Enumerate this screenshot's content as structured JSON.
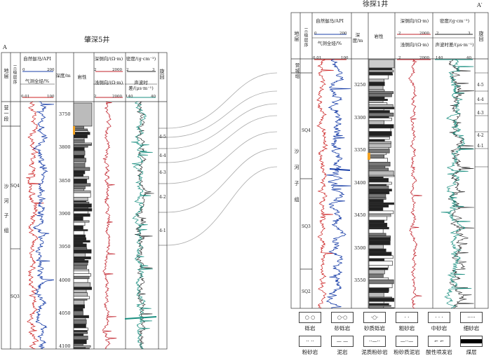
{
  "well_left": {
    "title": "肇深5井",
    "profile_end": "A",
    "col_headers": {
      "formation": "地层",
      "sequence": "三级层序",
      "gamma": "自然伽马/API",
      "gamma_min": "0",
      "gamma_max": "200",
      "gas": "气测全烃/%",
      "gas_min": "0.01",
      "gas_max": "100",
      "depth": "深度/m",
      "lith": "岩性",
      "deep_res": "深侧向/(Ω·m)",
      "deep_min": "2",
      "deep_max": "2000",
      "shallow_res": "浅侧向/(Ω·m)",
      "shallow_min": "2",
      "shallow_max": "2000",
      "density": "密度/(g·cm⁻³)",
      "density_min": "2",
      "density_max": "3",
      "sonic": "声波时差/(μs·m⁻¹)",
      "sonic_min": "140",
      "sonic_max": "40",
      "cycle": "旋回"
    },
    "formations": [
      "营一段",
      "沙河子组"
    ],
    "sequences": [
      "SQ4",
      "SQ3"
    ],
    "depths": [
      "3750",
      "3800",
      "3850",
      "3900",
      "3950",
      "4000",
      "4050",
      "4100"
    ],
    "cycles": [
      "4-5",
      "4-4",
      "4-3",
      "4-2",
      "4-1"
    ]
  },
  "well_right": {
    "title": "徐探1井",
    "profile_end": "A′",
    "col_headers": {
      "formation": "地层",
      "sequence": "三级层序",
      "gamma": "自然伽马/API",
      "gamma_min": "0",
      "gamma_max": "200",
      "gas": "气测全烃/%",
      "gas_min": "0.01",
      "gas_max": "100",
      "depth": "深度/m",
      "lith": "岩性",
      "deep_res": "深侧向/(Ω·m)",
      "deep_min": "2",
      "deep_max": "2000",
      "shallow_res": "浅侧向/(Ω·m)",
      "shallow_min": "2",
      "shallow_max": "2000",
      "density": "密度/(g·cm⁻³)",
      "density_min": "2",
      "density_max": "3",
      "sonic": "声波时差/(μs·m⁻¹)",
      "sonic_min": "140",
      "sonic_max": "40",
      "cycle": "旋回"
    },
    "formations": [
      "营城组",
      "沙河子组"
    ],
    "sequences": [
      "SQ4",
      "SQ3",
      "SQ2"
    ],
    "depths": [
      "3250",
      "3300",
      "3350",
      "3400",
      "3450",
      "3500",
      "3550"
    ],
    "cycles": [
      "4-5",
      "4-4",
      "4-3",
      "4-2",
      "4-1"
    ]
  },
  "legend": [
    {
      "label": "砾岩",
      "pattern": "conglomerate"
    },
    {
      "label": "砂砾岩",
      "pattern": "sandy-conglomerate"
    },
    {
      "label": "砂质砾岩",
      "pattern": "pebbly-sandstone"
    },
    {
      "label": "粗砂岩",
      "pattern": "coarse-sandstone"
    },
    {
      "label": "中砂岩",
      "pattern": "medium-sandstone"
    },
    {
      "label": "细砂岩",
      "pattern": "fine-sandstone"
    },
    {
      "label": "粉砂岩",
      "pattern": "siltstone"
    },
    {
      "label": "泥岩",
      "pattern": "mudstone"
    },
    {
      "label": "泥质粉砂岩",
      "pattern": "muddy-siltstone"
    },
    {
      "label": "粉砂质泥岩",
      "pattern": "silty-mudstone"
    },
    {
      "label": "酸性喷发岩",
      "pattern": "acidic-volcanic"
    },
    {
      "label": "煤层",
      "pattern": "coal"
    }
  ],
  "colors": {
    "gamma": "#1a3fa8",
    "gas": "#cc2222",
    "resistivity": "#c0202a",
    "density": "#222222",
    "sonic": "#1a8f80",
    "grid": "#333333",
    "connector": "#999999"
  }
}
